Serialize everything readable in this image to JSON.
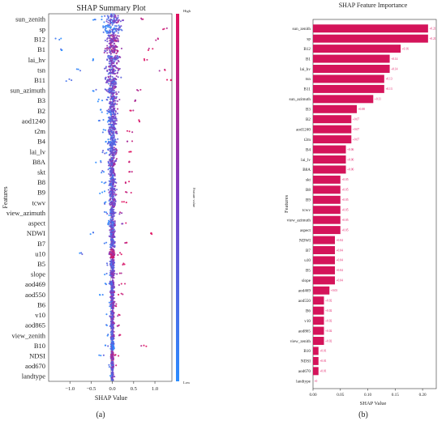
{
  "chart_data": [
    {
      "type": "scatter",
      "title": "SHAP Summary Plot",
      "xlabel": "SHAP Value",
      "ylabel": "Features",
      "xlim": [
        -1.5,
        1.4
      ],
      "xticks": [
        -1.0,
        -0.5,
        0.0,
        0.5,
        1.0
      ],
      "xtick_labels": [
        "−1.0",
        "−0.5",
        "0.0",
        "0.5",
        "1.0"
      ],
      "colorbar": {
        "label": "Feature value",
        "high": "High",
        "low": "Low",
        "colors": [
          "#2b8cff",
          "#7b3fc4",
          "#e0115f"
        ]
      },
      "features": [
        {
          "name": "sun_zenith",
          "min": -0.45,
          "max": 0.8,
          "spread": 0.55
        },
        {
          "name": "sp",
          "min": -0.3,
          "max": 1.3,
          "spread": 0.6
        },
        {
          "name": "B12",
          "min": -1.35,
          "max": 1.1,
          "spread": 0.5
        },
        {
          "name": "B1",
          "min": -1.3,
          "max": 0.95,
          "spread": 0.5
        },
        {
          "name": "lai_hv",
          "min": -0.55,
          "max": 0.85,
          "spread": 0.45
        },
        {
          "name": "tsn",
          "min": -0.9,
          "max": 1.25,
          "spread": 0.45
        },
        {
          "name": "B11",
          "min": -1.1,
          "max": 1.4,
          "spread": 0.45
        },
        {
          "name": "sun_azimuth",
          "min": -0.5,
          "max": 0.7,
          "spread": 0.4
        },
        {
          "name": "B3",
          "min": -0.35,
          "max": 0.6,
          "spread": 0.35
        },
        {
          "name": "B2",
          "min": -0.3,
          "max": 0.55,
          "spread": 0.35
        },
        {
          "name": "aod1240",
          "min": -0.35,
          "max": 0.7,
          "spread": 0.35
        },
        {
          "name": "t2m",
          "min": -0.3,
          "max": 0.5,
          "spread": 0.3
        },
        {
          "name": "B4",
          "min": -0.2,
          "max": 0.5,
          "spread": 0.3
        },
        {
          "name": "lai_lv",
          "min": -0.3,
          "max": 0.45,
          "spread": 0.3
        },
        {
          "name": "B8A",
          "min": -0.4,
          "max": 0.5,
          "spread": 0.3
        },
        {
          "name": "skt",
          "min": -0.3,
          "max": 0.5,
          "spread": 0.25
        },
        {
          "name": "B8",
          "min": -0.25,
          "max": 0.4,
          "spread": 0.25
        },
        {
          "name": "B9",
          "min": -0.3,
          "max": 0.45,
          "spread": 0.25
        },
        {
          "name": "tcwv",
          "min": -0.25,
          "max": 0.35,
          "spread": 0.22
        },
        {
          "name": "view_azimuth",
          "min": -0.2,
          "max": 0.3,
          "spread": 0.2
        },
        {
          "name": "aspect",
          "min": -0.2,
          "max": 0.35,
          "spread": 0.2
        },
        {
          "name": "NDWI",
          "min": -0.55,
          "max": 1.0,
          "spread": 0.2
        },
        {
          "name": "B7",
          "min": -0.2,
          "max": 0.4,
          "spread": 0.18
        },
        {
          "name": "u10",
          "min": -0.8,
          "max": 0.25,
          "spread": 0.18
        },
        {
          "name": "B5",
          "min": -0.15,
          "max": 0.3,
          "spread": 0.15
        },
        {
          "name": "slope",
          "min": -0.2,
          "max": 0.25,
          "spread": 0.15
        },
        {
          "name": "aod469",
          "min": -0.2,
          "max": 0.3,
          "spread": 0.14
        },
        {
          "name": "aod550",
          "min": -0.3,
          "max": 0.25,
          "spread": 0.14
        },
        {
          "name": "B6",
          "min": -0.15,
          "max": 0.2,
          "spread": 0.12
        },
        {
          "name": "v10",
          "min": -0.15,
          "max": 0.2,
          "spread": 0.12
        },
        {
          "name": "aod865",
          "min": -0.15,
          "max": 0.2,
          "spread": 0.12
        },
        {
          "name": "view_zenith",
          "min": -0.15,
          "max": 0.2,
          "spread": 0.12
        },
        {
          "name": "B10",
          "min": -0.2,
          "max": 0.8,
          "spread": 0.1
        },
        {
          "name": "NDSI",
          "min": -0.35,
          "max": 0.2,
          "spread": 0.1
        },
        {
          "name": "aod670",
          "min": -0.1,
          "max": 0.15,
          "spread": 0.08
        },
        {
          "name": "landtype",
          "min": -0.05,
          "max": 0.08,
          "spread": 0.05
        }
      ]
    },
    {
      "type": "bar",
      "orientation": "horizontal",
      "title": "SHAP Feature Importance",
      "xlabel": "SHAP Value",
      "ylabel": "Features",
      "xlim": [
        0,
        0.225
      ],
      "xticks": [
        0.0,
        0.05,
        0.1,
        0.15,
        0.2
      ],
      "xtick_labels": [
        "0.00",
        "0.05",
        "0.10",
        "0.15",
        "0.20"
      ],
      "categories": [
        "sun_zenith",
        "sp",
        "B12",
        "B1",
        "lai_hv",
        "tsn",
        "B11",
        "sun_azimuth",
        "B3",
        "B2",
        "aod1240",
        "t2m",
        "B4",
        "lai_lv",
        "B8A",
        "skt",
        "B8",
        "B9",
        "tcwv",
        "view_azimuth",
        "aspect",
        "NDWI",
        "B7",
        "u10",
        "B5",
        "slope",
        "aod469",
        "aod550",
        "B6",
        "v10",
        "aod865",
        "view_zenith",
        "B10",
        "NDSI",
        "aod670",
        "landtype"
      ],
      "values": [
        0.21,
        0.21,
        0.16,
        0.14,
        0.14,
        0.13,
        0.13,
        0.11,
        0.08,
        0.07,
        0.07,
        0.07,
        0.06,
        0.06,
        0.06,
        0.05,
        0.05,
        0.05,
        0.05,
        0.05,
        0.05,
        0.04,
        0.04,
        0.04,
        0.04,
        0.04,
        0.03,
        0.02,
        0.02,
        0.02,
        0.02,
        0.02,
        0.01,
        0.01,
        0.01,
        0.0
      ],
      "value_labels": [
        "+0.21",
        "+0.21",
        "+0.16",
        "+0.14",
        "+0.14",
        "+0.13",
        "+0.13",
        "+0.11",
        "+0.08",
        "+0.07",
        "+0.07",
        "+0.07",
        "+0.06",
        "+0.06",
        "+0.06",
        "+0.05",
        "+0.05",
        "+0.05",
        "+0.05",
        "+0.05",
        "+0.05",
        "+0.04",
        "+0.04",
        "+0.04",
        "+0.04",
        "+0.04",
        "+0.03",
        "+0.02",
        "+0.02",
        "+0.02",
        "+0.02",
        "+0.02",
        "+0.01",
        "+0.01",
        "+0.01",
        "+0"
      ],
      "bar_color": "#d4145a"
    }
  ],
  "captions": [
    "(a)",
    "(b)"
  ]
}
